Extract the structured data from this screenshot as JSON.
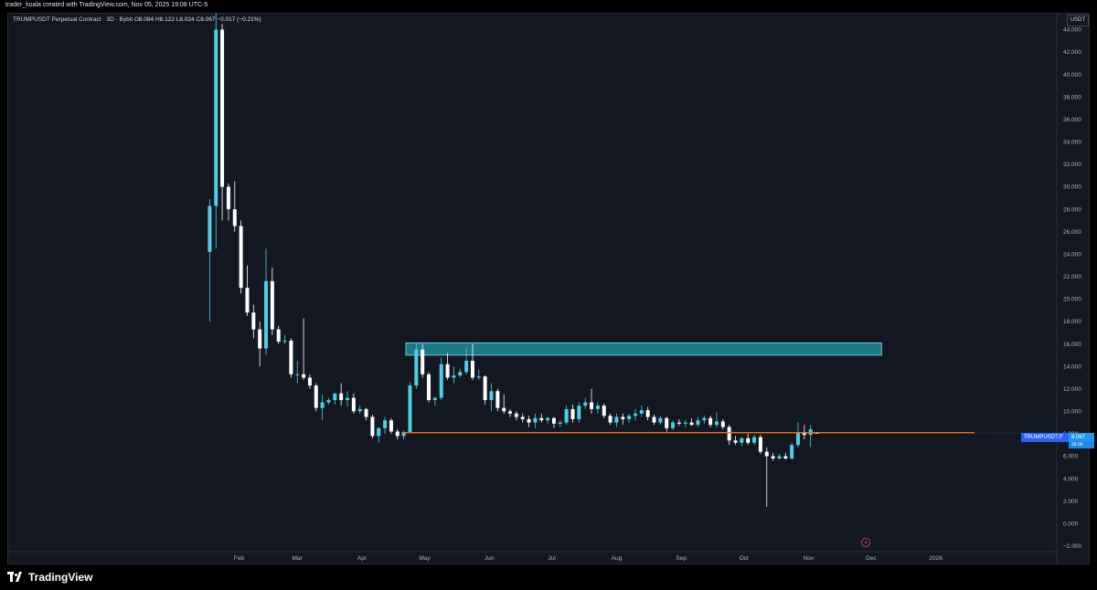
{
  "header": {
    "attribution": "trader_koala created with TradingView.com, Nov 05, 2025 19:08 UTC-5"
  },
  "legend": {
    "symbol": "TRUMPUSDT Perpetual Contract · 3D · Bybit",
    "open_label": "O",
    "open": "8.084",
    "high_label": "H",
    "high": "8.122",
    "low_label": "L",
    "low": "8.024",
    "close_label": "C",
    "close": "8.067",
    "change": "−0.017 (−0.21%)"
  },
  "currency": "USDT",
  "price_tag": {
    "symbol": "TRUMPUSDT.P",
    "price": "8.067",
    "countdown": "3d 0h"
  },
  "brand": {
    "label": "TradingView"
  },
  "colors": {
    "background": "#131722",
    "up": "#4dd0e1",
    "down": "#ffffff",
    "support_line": "#ff6d00",
    "resistance_zone": "#26c6da",
    "grid": "#1e222d"
  },
  "icons": {
    "watermark": "lightning-icon"
  },
  "chart_data": {
    "type": "candlestick",
    "ylim": [
      -2.5,
      45.5
    ],
    "y_ticks": [
      "44.000",
      "42.000",
      "40.000",
      "38.000",
      "36.000",
      "34.000",
      "32.000",
      "30.000",
      "28.000",
      "26.000",
      "24.000",
      "22.000",
      "20.000",
      "18.000",
      "16.000",
      "14.000",
      "12.000",
      "10.000",
      "8.000",
      "6.000",
      "4.000",
      "2.000",
      "0.000",
      "−2.000"
    ],
    "y_tick_values": [
      44,
      42,
      40,
      38,
      36,
      34,
      32,
      30,
      28,
      26,
      24,
      22,
      20,
      18,
      16,
      14,
      12,
      10,
      8,
      6,
      4,
      2,
      0,
      -2
    ],
    "x_ticks": [
      "Feb",
      "Mar",
      "Apr",
      "May",
      "Jun",
      "Jul",
      "Aug",
      "Sep",
      "Oct",
      "Nov",
      "Dec",
      "2026"
    ],
    "x_tick_dates": [
      "2025-02-01",
      "2025-03-01",
      "2025-04-01",
      "2025-05-01",
      "2025-06-01",
      "2025-07-01",
      "2025-08-01",
      "2025-09-01",
      "2025-10-01",
      "2025-11-01",
      "2025-12-01",
      "2026-01-01"
    ],
    "x_range": [
      "2024-10-13",
      "2026-02-28"
    ],
    "support_level": 8.1,
    "resistance_zone": {
      "from": "2025-04-22",
      "to": "2025-12-06",
      "low": 15.0,
      "high": 16.1
    },
    "candles": [
      {
        "t": "2025-01-18",
        "o": 24.2,
        "h": 28.9,
        "l": 18.0,
        "c": 28.3
      },
      {
        "t": "2025-01-21",
        "o": 28.3,
        "h": 45.5,
        "l": 24.5,
        "c": 44.0
      },
      {
        "t": "2025-01-24",
        "o": 44.0,
        "h": 44.5,
        "l": 27.0,
        "c": 30.0
      },
      {
        "t": "2025-01-27",
        "o": 30.0,
        "h": 30.3,
        "l": 27.0,
        "c": 28.0
      },
      {
        "t": "2025-01-30",
        "o": 28.0,
        "h": 30.5,
        "l": 26.0,
        "c": 26.5
      },
      {
        "t": "2025-02-02",
        "o": 26.5,
        "h": 27.0,
        "l": 20.5,
        "c": 21.0
      },
      {
        "t": "2025-02-05",
        "o": 21.0,
        "h": 23.0,
        "l": 18.5,
        "c": 18.8
      },
      {
        "t": "2025-02-08",
        "o": 18.8,
        "h": 19.5,
        "l": 16.5,
        "c": 17.3
      },
      {
        "t": "2025-02-11",
        "o": 17.3,
        "h": 18.0,
        "l": 14.0,
        "c": 15.6
      },
      {
        "t": "2025-02-14",
        "o": 15.6,
        "h": 24.5,
        "l": 15.0,
        "c": 21.6
      },
      {
        "t": "2025-02-17",
        "o": 21.6,
        "h": 22.8,
        "l": 16.8,
        "c": 17.3
      },
      {
        "t": "2025-02-20",
        "o": 17.3,
        "h": 17.6,
        "l": 16.0,
        "c": 16.2
      },
      {
        "t": "2025-02-23",
        "o": 16.2,
        "h": 16.8,
        "l": 16.0,
        "c": 16.3
      },
      {
        "t": "2025-02-26",
        "o": 16.3,
        "h": 16.5,
        "l": 13.0,
        "c": 13.3
      },
      {
        "t": "2025-03-01",
        "o": 13.3,
        "h": 14.5,
        "l": 12.5,
        "c": 13.3
      },
      {
        "t": "2025-03-04",
        "o": 13.3,
        "h": 18.3,
        "l": 12.8,
        "c": 13.0
      },
      {
        "t": "2025-03-07",
        "o": 13.0,
        "h": 13.3,
        "l": 12.0,
        "c": 12.3
      },
      {
        "t": "2025-03-10",
        "o": 12.3,
        "h": 12.5,
        "l": 10.0,
        "c": 10.3
      },
      {
        "t": "2025-03-13",
        "o": 10.3,
        "h": 11.5,
        "l": 9.2,
        "c": 10.8
      },
      {
        "t": "2025-03-16",
        "o": 10.8,
        "h": 11.2,
        "l": 10.6,
        "c": 11.0
      },
      {
        "t": "2025-03-19",
        "o": 11.0,
        "h": 11.5,
        "l": 10.6,
        "c": 11.6
      },
      {
        "t": "2025-03-22",
        "o": 11.6,
        "h": 12.5,
        "l": 10.5,
        "c": 11.0
      },
      {
        "t": "2025-03-25",
        "o": 11.0,
        "h": 11.8,
        "l": 10.4,
        "c": 11.2
      },
      {
        "t": "2025-03-28",
        "o": 11.2,
        "h": 11.6,
        "l": 9.8,
        "c": 10.0
      },
      {
        "t": "2025-03-31",
        "o": 10.0,
        "h": 10.5,
        "l": 9.8,
        "c": 10.2
      },
      {
        "t": "2025-04-03",
        "o": 10.2,
        "h": 10.3,
        "l": 9.2,
        "c": 9.5
      },
      {
        "t": "2025-04-06",
        "o": 9.5,
        "h": 9.7,
        "l": 7.6,
        "c": 7.8
      },
      {
        "t": "2025-04-09",
        "o": 7.8,
        "h": 8.6,
        "l": 7.2,
        "c": 8.5
      },
      {
        "t": "2025-04-12",
        "o": 8.5,
        "h": 9.5,
        "l": 8.0,
        "c": 9.2
      },
      {
        "t": "2025-04-15",
        "o": 9.2,
        "h": 9.4,
        "l": 8.0,
        "c": 8.2
      },
      {
        "t": "2025-04-18",
        "o": 8.2,
        "h": 8.4,
        "l": 7.5,
        "c": 7.8
      },
      {
        "t": "2025-04-21",
        "o": 7.8,
        "h": 8.3,
        "l": 7.5,
        "c": 8.1
      },
      {
        "t": "2025-04-24",
        "o": 8.1,
        "h": 12.6,
        "l": 8.1,
        "c": 12.3
      },
      {
        "t": "2025-04-27",
        "o": 12.3,
        "h": 16.0,
        "l": 12.0,
        "c": 15.5
      },
      {
        "t": "2025-04-30",
        "o": 15.5,
        "h": 16.0,
        "l": 13.0,
        "c": 13.3
      },
      {
        "t": "2025-05-03",
        "o": 13.3,
        "h": 13.5,
        "l": 10.8,
        "c": 11.0
      },
      {
        "t": "2025-05-06",
        "o": 11.0,
        "h": 11.3,
        "l": 10.5,
        "c": 11.2
      },
      {
        "t": "2025-05-09",
        "o": 11.2,
        "h": 14.8,
        "l": 11.0,
        "c": 14.2
      },
      {
        "t": "2025-05-12",
        "o": 14.2,
        "h": 15.2,
        "l": 12.8,
        "c": 13.0
      },
      {
        "t": "2025-05-15",
        "o": 13.0,
        "h": 14.0,
        "l": 12.5,
        "c": 13.2
      },
      {
        "t": "2025-05-18",
        "o": 13.2,
        "h": 13.8,
        "l": 13.0,
        "c": 13.5
      },
      {
        "t": "2025-05-21",
        "o": 13.5,
        "h": 15.7,
        "l": 13.3,
        "c": 14.5
      },
      {
        "t": "2025-05-24",
        "o": 14.5,
        "h": 16.0,
        "l": 12.8,
        "c": 13.0
      },
      {
        "t": "2025-05-27",
        "o": 13.0,
        "h": 13.7,
        "l": 12.8,
        "c": 13.1
      },
      {
        "t": "2025-05-30",
        "o": 13.1,
        "h": 13.2,
        "l": 10.6,
        "c": 11.0
      },
      {
        "t": "2025-06-02",
        "o": 11.0,
        "h": 12.5,
        "l": 10.0,
        "c": 11.8
      },
      {
        "t": "2025-06-05",
        "o": 11.8,
        "h": 12.0,
        "l": 10.0,
        "c": 10.3
      },
      {
        "t": "2025-06-08",
        "o": 10.3,
        "h": 11.5,
        "l": 9.8,
        "c": 10.0
      },
      {
        "t": "2025-06-11",
        "o": 10.0,
        "h": 10.2,
        "l": 9.5,
        "c": 9.8
      },
      {
        "t": "2025-06-14",
        "o": 9.8,
        "h": 10.0,
        "l": 9.2,
        "c": 9.5
      },
      {
        "t": "2025-06-17",
        "o": 9.5,
        "h": 9.8,
        "l": 9.0,
        "c": 9.3
      },
      {
        "t": "2025-06-20",
        "o": 9.3,
        "h": 9.6,
        "l": 8.6,
        "c": 9.0
      },
      {
        "t": "2025-06-23",
        "o": 9.0,
        "h": 9.8,
        "l": 8.5,
        "c": 9.4
      },
      {
        "t": "2025-06-26",
        "o": 9.4,
        "h": 9.8,
        "l": 9.0,
        "c": 9.2
      },
      {
        "t": "2025-06-29",
        "o": 9.2,
        "h": 9.5,
        "l": 8.9,
        "c": 9.4
      },
      {
        "t": "2025-07-02",
        "o": 9.4,
        "h": 9.5,
        "l": 8.5,
        "c": 8.9
      },
      {
        "t": "2025-07-05",
        "o": 8.9,
        "h": 9.2,
        "l": 8.6,
        "c": 9.0
      },
      {
        "t": "2025-07-08",
        "o": 9.0,
        "h": 10.5,
        "l": 8.8,
        "c": 10.2
      },
      {
        "t": "2025-07-11",
        "o": 10.2,
        "h": 10.6,
        "l": 9.0,
        "c": 9.3
      },
      {
        "t": "2025-07-14",
        "o": 9.3,
        "h": 10.8,
        "l": 9.0,
        "c": 10.5
      },
      {
        "t": "2025-07-17",
        "o": 10.5,
        "h": 11.2,
        "l": 10.2,
        "c": 10.8
      },
      {
        "t": "2025-07-20",
        "o": 10.8,
        "h": 12.0,
        "l": 9.8,
        "c": 10.2
      },
      {
        "t": "2025-07-23",
        "o": 10.2,
        "h": 10.8,
        "l": 9.8,
        "c": 10.5
      },
      {
        "t": "2025-07-26",
        "o": 10.5,
        "h": 10.7,
        "l": 9.4,
        "c": 9.6
      },
      {
        "t": "2025-07-29",
        "o": 9.6,
        "h": 9.8,
        "l": 8.8,
        "c": 9.0
      },
      {
        "t": "2025-08-01",
        "o": 9.0,
        "h": 9.8,
        "l": 8.6,
        "c": 9.5
      },
      {
        "t": "2025-08-04",
        "o": 9.5,
        "h": 9.8,
        "l": 8.8,
        "c": 9.3
      },
      {
        "t": "2025-08-07",
        "o": 9.3,
        "h": 9.8,
        "l": 9.0,
        "c": 9.6
      },
      {
        "t": "2025-08-10",
        "o": 9.6,
        "h": 10.2,
        "l": 9.2,
        "c": 9.8
      },
      {
        "t": "2025-08-13",
        "o": 9.8,
        "h": 10.5,
        "l": 9.5,
        "c": 10.1
      },
      {
        "t": "2025-08-16",
        "o": 10.1,
        "h": 10.4,
        "l": 9.2,
        "c": 9.5
      },
      {
        "t": "2025-08-19",
        "o": 9.5,
        "h": 9.7,
        "l": 8.8,
        "c": 9.0
      },
      {
        "t": "2025-08-22",
        "o": 9.0,
        "h": 9.6,
        "l": 8.8,
        "c": 9.4
      },
      {
        "t": "2025-08-25",
        "o": 9.4,
        "h": 9.5,
        "l": 8.2,
        "c": 8.5
      },
      {
        "t": "2025-08-28",
        "o": 8.5,
        "h": 9.2,
        "l": 8.3,
        "c": 9.0
      },
      {
        "t": "2025-08-31",
        "o": 9.0,
        "h": 9.3,
        "l": 8.7,
        "c": 8.9
      },
      {
        "t": "2025-09-03",
        "o": 8.9,
        "h": 9.2,
        "l": 8.6,
        "c": 9.0
      },
      {
        "t": "2025-09-06",
        "o": 9.0,
        "h": 9.4,
        "l": 8.7,
        "c": 8.8
      },
      {
        "t": "2025-09-09",
        "o": 8.8,
        "h": 9.5,
        "l": 8.6,
        "c": 9.2
      },
      {
        "t": "2025-09-12",
        "o": 9.2,
        "h": 9.6,
        "l": 8.9,
        "c": 9.4
      },
      {
        "t": "2025-09-15",
        "o": 9.4,
        "h": 9.6,
        "l": 8.6,
        "c": 8.8
      },
      {
        "t": "2025-09-18",
        "o": 8.8,
        "h": 9.9,
        "l": 8.6,
        "c": 9.1
      },
      {
        "t": "2025-09-21",
        "o": 9.1,
        "h": 9.3,
        "l": 8.4,
        "c": 8.6
      },
      {
        "t": "2025-09-24",
        "o": 8.6,
        "h": 8.8,
        "l": 7.0,
        "c": 7.4
      },
      {
        "t": "2025-09-27",
        "o": 7.4,
        "h": 7.8,
        "l": 7.0,
        "c": 7.2
      },
      {
        "t": "2025-09-30",
        "o": 7.2,
        "h": 7.7,
        "l": 6.9,
        "c": 7.6
      },
      {
        "t": "2025-10-03",
        "o": 7.6,
        "h": 8.0,
        "l": 7.0,
        "c": 7.2
      },
      {
        "t": "2025-10-06",
        "o": 7.2,
        "h": 7.9,
        "l": 7.0,
        "c": 7.7
      },
      {
        "t": "2025-10-09",
        "o": 7.7,
        "h": 7.9,
        "l": 6.2,
        "c": 6.4
      },
      {
        "t": "2025-10-12",
        "o": 6.4,
        "h": 6.8,
        "l": 1.5,
        "c": 6.0
      },
      {
        "t": "2025-10-15",
        "o": 6.0,
        "h": 6.3,
        "l": 5.6,
        "c": 5.8
      },
      {
        "t": "2025-10-18",
        "o": 5.8,
        "h": 6.2,
        "l": 5.7,
        "c": 6.0
      },
      {
        "t": "2025-10-21",
        "o": 6.0,
        "h": 6.3,
        "l": 5.7,
        "c": 5.8
      },
      {
        "t": "2025-10-24",
        "o": 5.8,
        "h": 7.2,
        "l": 5.7,
        "c": 7.0
      },
      {
        "t": "2025-10-27",
        "o": 7.0,
        "h": 9.0,
        "l": 6.8,
        "c": 8.1
      },
      {
        "t": "2025-10-30",
        "o": 8.1,
        "h": 8.8,
        "l": 7.5,
        "c": 7.9
      },
      {
        "t": "2025-11-02",
        "o": 7.9,
        "h": 8.8,
        "l": 6.8,
        "c": 8.4
      },
      {
        "t": "2025-11-05",
        "o": 8.084,
        "h": 8.122,
        "l": 8.024,
        "c": 8.067
      }
    ]
  }
}
